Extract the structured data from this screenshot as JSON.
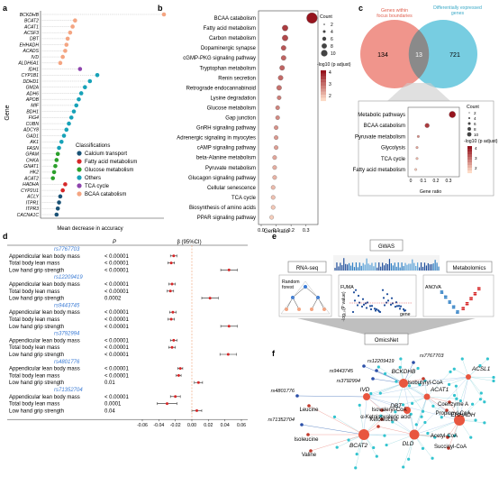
{
  "panels": {
    "a": "a",
    "b": "b",
    "c": "c",
    "d": "d",
    "e": "e",
    "f": "f"
  },
  "panel_a": {
    "y_axis_label": "Gene",
    "x_axis_label": "Mean decrease in accuracy",
    "legend_title": "Classifications",
    "classes": [
      {
        "name": "Calcium transport",
        "color": "#1a5276"
      },
      {
        "name": "Fatty acid metabolism",
        "color": "#d62728"
      },
      {
        "name": "Glucose metabolism",
        "color": "#2ca02c"
      },
      {
        "name": "Others",
        "color": "#17a2b8"
      },
      {
        "name": "TCA cycle",
        "color": "#8e44ad"
      },
      {
        "name": "BCAA catabolism",
        "color": "#f4a582"
      }
    ],
    "genes": [
      {
        "name": "BCKDHB",
        "cls": 5,
        "v": 1.0
      },
      {
        "name": "BCAT2",
        "cls": 5,
        "v": 0.28
      },
      {
        "name": "ACAT1",
        "cls": 5,
        "v": 0.26
      },
      {
        "name": "ACSF3",
        "cls": 5,
        "v": 0.24
      },
      {
        "name": "DBT",
        "cls": 5,
        "v": 0.22
      },
      {
        "name": "EHHADH",
        "cls": 5,
        "v": 0.21
      },
      {
        "name": "ACADS",
        "cls": 5,
        "v": 0.2
      },
      {
        "name": "IVD",
        "cls": 5,
        "v": 0.18
      },
      {
        "name": "ALDH6A1",
        "cls": 5,
        "v": 0.16
      },
      {
        "name": "IDH1",
        "cls": 4,
        "v": 0.32
      },
      {
        "name": "CYP1B1",
        "cls": 3,
        "v": 0.46
      },
      {
        "name": "DDHD1",
        "cls": 3,
        "v": 0.4
      },
      {
        "name": "GM2A",
        "cls": 3,
        "v": 0.36
      },
      {
        "name": "ADH6",
        "cls": 3,
        "v": 0.33
      },
      {
        "name": "APOB",
        "cls": 3,
        "v": 0.31
      },
      {
        "name": "MIF",
        "cls": 3,
        "v": 0.29
      },
      {
        "name": "BDH1",
        "cls": 3,
        "v": 0.27
      },
      {
        "name": "FIG4",
        "cls": 3,
        "v": 0.25
      },
      {
        "name": "CUBN",
        "cls": 3,
        "v": 0.23
      },
      {
        "name": "ADCY8",
        "cls": 3,
        "v": 0.21
      },
      {
        "name": "GAD1",
        "cls": 3,
        "v": 0.19
      },
      {
        "name": "AK1",
        "cls": 3,
        "v": 0.17
      },
      {
        "name": "FASN",
        "cls": 3,
        "v": 0.15
      },
      {
        "name": "GPAM",
        "cls": 2,
        "v": 0.14
      },
      {
        "name": "CHKA",
        "cls": 2,
        "v": 0.13
      },
      {
        "name": "GNAT1",
        "cls": 2,
        "v": 0.12
      },
      {
        "name": "HK2",
        "cls": 2,
        "v": 0.11
      },
      {
        "name": "ACAT2",
        "cls": 2,
        "v": 0.1
      },
      {
        "name": "HADHA",
        "cls": 1,
        "v": 0.2
      },
      {
        "name": "CYP2U1",
        "cls": 1,
        "v": 0.18
      },
      {
        "name": "ACLY",
        "cls": 0,
        "v": 0.16
      },
      {
        "name": "ITPR1",
        "cls": 0,
        "v": 0.15
      },
      {
        "name": "ITPR3",
        "cls": 0,
        "v": 0.14
      },
      {
        "name": "CACNA1C",
        "cls": 0,
        "v": 0.13
      }
    ]
  },
  "panel_b": {
    "x_axis_label": "Gene ratio",
    "x_ticks": [
      "0.0",
      "0.1",
      "0.2",
      "0.3"
    ],
    "count_title": "Count",
    "count_levels": [
      "2",
      "4",
      "6",
      "8",
      "10"
    ],
    "padj_title": "-log10 (p adjust)",
    "padj_levels": [
      "2",
      "3",
      "4"
    ],
    "pathways": [
      {
        "name": "BCAA catabolism",
        "ratio": 0.34,
        "count": 10,
        "padj": 4.2
      },
      {
        "name": "Fatty acid metabolism",
        "ratio": 0.16,
        "count": 4,
        "padj": 3.6
      },
      {
        "name": "Carbon metabolism",
        "ratio": 0.16,
        "count": 4,
        "padj": 3.4
      },
      {
        "name": "Dopaminergic synapse",
        "ratio": 0.15,
        "count": 3,
        "padj": 3.2
      },
      {
        "name": "cGMP-PKG signaling pathway",
        "ratio": 0.15,
        "count": 3,
        "padj": 3.0
      },
      {
        "name": "Tryptophan metabolism",
        "ratio": 0.14,
        "count": 3,
        "padj": 3.0
      },
      {
        "name": "Renin secretion",
        "ratio": 0.13,
        "count": 3,
        "padj": 2.9
      },
      {
        "name": "Retrograde endocannabinoid",
        "ratio": 0.12,
        "count": 3,
        "padj": 2.8
      },
      {
        "name": "Lysine degradation",
        "ratio": 0.12,
        "count": 2,
        "padj": 2.6
      },
      {
        "name": "Glucose metabolism",
        "ratio": 0.11,
        "count": 2,
        "padj": 2.5
      },
      {
        "name": "Gap junction",
        "ratio": 0.11,
        "count": 2,
        "padj": 2.4
      },
      {
        "name": "GnRH signaling pathway",
        "ratio": 0.1,
        "count": 2,
        "padj": 2.3
      },
      {
        "name": "Adrenergic signaling in myocytes",
        "ratio": 0.1,
        "count": 2,
        "padj": 2.2
      },
      {
        "name": "cAMP signaling pathway",
        "ratio": 0.1,
        "count": 2,
        "padj": 2.1
      },
      {
        "name": "beta-Alanine metabolism",
        "ratio": 0.09,
        "count": 2,
        "padj": 2.0
      },
      {
        "name": "Pyruvate metabolism",
        "ratio": 0.09,
        "count": 2,
        "padj": 1.9
      },
      {
        "name": "Glucagon signaling pathway",
        "ratio": 0.09,
        "count": 2,
        "padj": 1.8
      },
      {
        "name": "Cellular senescence",
        "ratio": 0.08,
        "count": 2,
        "padj": 1.7
      },
      {
        "name": "TCA cycle",
        "ratio": 0.08,
        "count": 2,
        "padj": 1.6
      },
      {
        "name": "Biosynthesis of amino acids",
        "ratio": 0.08,
        "count": 2,
        "padj": 1.5
      },
      {
        "name": "PPAR signaling pathway",
        "ratio": 0.07,
        "count": 2,
        "padj": 1.4
      }
    ]
  },
  "panel_c": {
    "left_label": "Genes within focus boundaries",
    "right_label": "Differentially expressed genes",
    "left_only": "134",
    "overlap": "13",
    "right_only": "721",
    "pathways": [
      {
        "name": "Metabolic pathways",
        "ratio": 0.33,
        "count": 10,
        "padj": 4.0
      },
      {
        "name": "BCAA catabolism",
        "ratio": 0.13,
        "count": 6,
        "padj": 3.5
      },
      {
        "name": "Pyruvate metabolism",
        "ratio": 0.06,
        "count": 2,
        "padj": 2.5
      },
      {
        "name": "Glycolysis",
        "ratio": 0.05,
        "count": 2,
        "padj": 2.2
      },
      {
        "name": "TCA cycle",
        "ratio": 0.05,
        "count": 2,
        "padj": 2.0
      },
      {
        "name": "Fatty acid metabolism",
        "ratio": 0.04,
        "count": 2,
        "padj": 1.8
      }
    ],
    "x_ticks": [
      "0",
      "0.1",
      "0.2",
      "0.3"
    ],
    "x_axis_label": "Gene ratio",
    "count_title": "Count",
    "count_levels": [
      "2",
      "4",
      "6",
      "8",
      "10"
    ],
    "padj_title": "-log10 (p adjust)",
    "padj_levels": [
      "2",
      "3",
      "4"
    ]
  },
  "panel_d": {
    "p_header": "P",
    "beta_header": "β (95%CI)",
    "x_ticks": [
      "-0.06",
      "-0.04",
      "-0.02",
      "0.00",
      "0.02",
      "0.04",
      "0.06"
    ],
    "snps": [
      {
        "id": "rs7767703",
        "rows": [
          {
            "trait": "Appendicular lean body mass",
            "p": "< 0.00001",
            "b": -0.022,
            "lo": -0.026,
            "hi": -0.018
          },
          {
            "trait": "Total body lean mass",
            "p": "< 0.00001",
            "b": -0.025,
            "lo": -0.029,
            "hi": -0.021
          },
          {
            "trait": "Low hand grip strength",
            "p": "< 0.00001",
            "b": 0.045,
            "lo": 0.035,
            "hi": 0.055
          }
        ]
      },
      {
        "id": "rs12209419",
        "rows": [
          {
            "trait": "Appendicular lean body mass",
            "p": "< 0.00001",
            "b": -0.024,
            "lo": -0.028,
            "hi": -0.02
          },
          {
            "trait": "Total body lean mass",
            "p": "< 0.00001",
            "b": -0.026,
            "lo": -0.03,
            "hi": -0.022
          },
          {
            "trait": "Low hand grip strength",
            "p": "0.0002",
            "b": 0.022,
            "lo": 0.012,
            "hi": 0.032
          }
        ]
      },
      {
        "id": "rs9443745",
        "rows": [
          {
            "trait": "Appendicular lean body mass",
            "p": "< 0.00001",
            "b": -0.023,
            "lo": -0.027,
            "hi": -0.019
          },
          {
            "trait": "Total body lean mass",
            "p": "< 0.00001",
            "b": -0.025,
            "lo": -0.029,
            "hi": -0.021
          },
          {
            "trait": "Low hand grip strength",
            "p": "< 0.00001",
            "b": 0.045,
            "lo": 0.035,
            "hi": 0.055
          }
        ]
      },
      {
        "id": "rs3792994",
        "rows": [
          {
            "trait": "Appendicular lean body mass",
            "p": "< 0.00001",
            "b": -0.022,
            "lo": -0.026,
            "hi": -0.018
          },
          {
            "trait": "Total body lean mass",
            "p": "< 0.00001",
            "b": -0.024,
            "lo": -0.028,
            "hi": -0.02
          },
          {
            "trait": "Low hand grip strength",
            "p": "< 0.00001",
            "b": 0.044,
            "lo": 0.034,
            "hi": 0.054
          }
        ]
      },
      {
        "id": "rs4801776",
        "rows": [
          {
            "trait": "Appendicular lean body mass",
            "p": "< 0.00001",
            "b": -0.014,
            "lo": -0.017,
            "hi": -0.011
          },
          {
            "trait": "Total body lean mass",
            "p": "< 0.00001",
            "b": -0.016,
            "lo": -0.019,
            "hi": -0.013
          },
          {
            "trait": "Low hand grip strength",
            "p": "0.01",
            "b": 0.008,
            "lo": 0.003,
            "hi": 0.013
          }
        ]
      },
      {
        "id": "rs71352704",
        "rows": [
          {
            "trait": "Appendicular lean body mass",
            "p": "< 0.00001",
            "b": -0.02,
            "lo": -0.026,
            "hi": -0.014
          },
          {
            "trait": "Total body lean mass",
            "p": "0.0001",
            "b": -0.03,
            "lo": -0.042,
            "hi": -0.018
          },
          {
            "trait": "Low hand grip strength",
            "p": "0.04",
            "b": 0.006,
            "lo": 0.0,
            "hi": 0.012
          }
        ]
      }
    ]
  },
  "panel_e": {
    "gwas": "GWAS",
    "rnaseq": "RNA-seq",
    "metabolomics": "Metabolomics",
    "random_forest": "Random forest",
    "fuma": "FUMA",
    "anova": "ANOVA",
    "omicsnet": "OmicsNet",
    "y_label": "-log₁₀(P value)",
    "gene_label": "gene"
  },
  "panel_f": {
    "hubs": [
      {
        "name": "BCKDHB"
      },
      {
        "name": "ACSL1"
      },
      {
        "name": "ACAT1"
      },
      {
        "name": "EHHADH"
      },
      {
        "name": "BCAT2"
      },
      {
        "name": "DLD"
      },
      {
        "name": "DBT"
      },
      {
        "name": "IVD"
      }
    ],
    "snps": [
      {
        "name": "rs12209419"
      },
      {
        "name": "rs7767703"
      },
      {
        "name": "rs9443745"
      },
      {
        "name": "rs3792994"
      },
      {
        "name": "rs4801776"
      },
      {
        "name": "rs71352704"
      }
    ],
    "metabolites": [
      {
        "name": "Isobutyryl-CoA"
      },
      {
        "name": "Isovaleryl-CoA"
      },
      {
        "name": "α-Ketoisovaleric acid"
      },
      {
        "name": "Coenzyme A"
      },
      {
        "name": "Propionyl-CoA"
      },
      {
        "name": "Leucine"
      },
      {
        "name": "Ketoleucine"
      },
      {
        "name": "Isoleucine"
      },
      {
        "name": "Valine"
      },
      {
        "name": "Acetyl-CoA"
      },
      {
        "name": "Succinyl-CoA"
      }
    ]
  },
  "colors": {
    "accent_blue": "#3a7bd5",
    "venn_left": "#ee8a80",
    "venn_right": "#5fc4dc",
    "dot_red": "#c0392b",
    "teal": "#33c4cf"
  }
}
